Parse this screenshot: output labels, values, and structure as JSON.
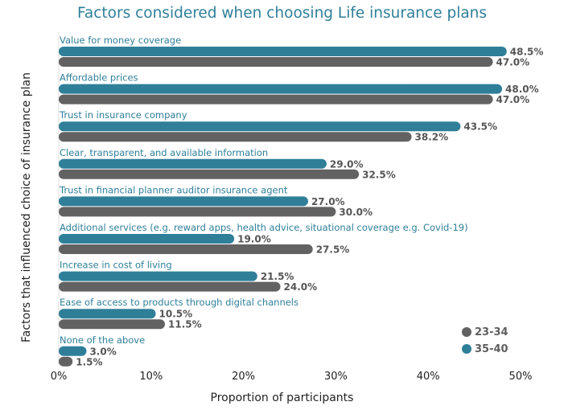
{
  "chart_data": {
    "type": "bar",
    "orientation": "horizontal",
    "title": "Factors considered when choosing Life insurance plans",
    "xlabel": "Proportion of participants",
    "ylabel": "Factors that influenced choice of insurance plan",
    "xlim": [
      0,
      50
    ],
    "x_ticks": [
      "0%",
      "10%",
      "20%",
      "30%",
      "40%",
      "50%"
    ],
    "grid": false,
    "legend_position": "bottom-right",
    "categories": [
      "Value for money coverage",
      "Affordable prices",
      "Trust in insurance company",
      "Clear, transparent, and available information",
      "Trust in financial planner auditor insurance agent",
      "Additional services (e.g. reward apps, health advice, situational coverage e.g. Covid-19)",
      "Increase in cost of living",
      "Ease of access to products through digital channels",
      "None of the above"
    ],
    "series": [
      {
        "name": "35-40",
        "color": "#2f7f99",
        "values": [
          48.5,
          48.0,
          43.5,
          29.0,
          27.0,
          19.0,
          21.5,
          10.5,
          3.0
        ],
        "labels": [
          "48.5%",
          "48.0%",
          "43.5%",
          "29.0%",
          "27.0%",
          "19.0%",
          "21.5%",
          "10.5%",
          "3.0%"
        ]
      },
      {
        "name": "23-34",
        "color": "#626262",
        "values": [
          47.0,
          47.0,
          38.2,
          32.5,
          30.0,
          27.5,
          24.0,
          11.5,
          1.5
        ],
        "labels": [
          "47.0%",
          "47.0%",
          "38.2%",
          "32.5%",
          "30.0%",
          "27.5%",
          "24.0%",
          "11.5%",
          "1.5%"
        ]
      }
    ],
    "legend": [
      {
        "name": "23-34",
        "color": "#626262"
      },
      {
        "name": "35-40",
        "color": "#2f7f99"
      }
    ]
  }
}
